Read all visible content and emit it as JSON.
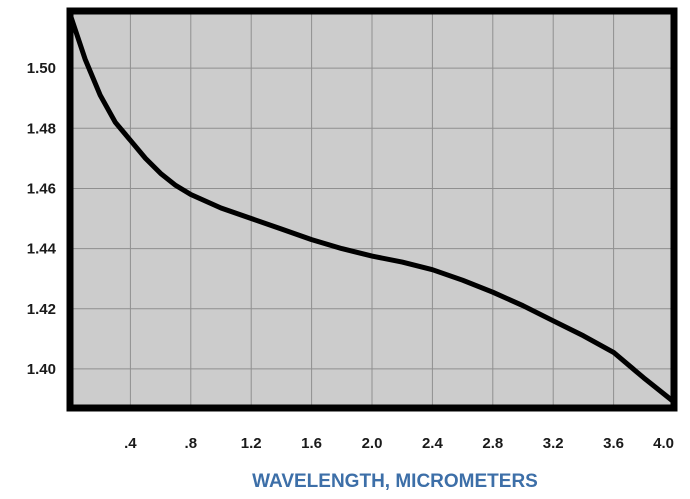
{
  "chart_data": {
    "type": "line",
    "title": "",
    "xlabel": "WAVELENGTH, MICROMETERS",
    "ylabel": "",
    "xlim": [
      0.0,
      4.0
    ],
    "ylim": [
      1.387,
      1.519
    ],
    "grid": true,
    "xticks": [
      {
        "value": 0.4,
        "label": ".4"
      },
      {
        "value": 0.8,
        "label": ".8"
      },
      {
        "value": 1.2,
        "label": "1.2"
      },
      {
        "value": 1.6,
        "label": "1.6"
      },
      {
        "value": 2.0,
        "label": "2.0"
      },
      {
        "value": 2.4,
        "label": "2.4"
      },
      {
        "value": 2.8,
        "label": "2.8"
      },
      {
        "value": 3.2,
        "label": "3.2"
      },
      {
        "value": 3.6,
        "label": "3.6"
      },
      {
        "value": 4.0,
        "label": "4.0"
      }
    ],
    "yticks": [
      {
        "value": 1.4,
        "label": "1.40"
      },
      {
        "value": 1.42,
        "label": "1.42"
      },
      {
        "value": 1.44,
        "label": "1.44"
      },
      {
        "value": 1.46,
        "label": "1.46"
      },
      {
        "value": 1.48,
        "label": "1.48"
      },
      {
        "value": 1.5,
        "label": "1.50"
      }
    ],
    "series": [
      {
        "x": [
          0.0,
          0.1,
          0.2,
          0.3,
          0.4,
          0.5,
          0.6,
          0.7,
          0.8,
          1.0,
          1.2,
          1.4,
          1.6,
          1.8,
          2.0,
          2.2,
          2.4,
          2.6,
          2.8,
          3.0,
          3.2,
          3.4,
          3.6,
          3.8,
          4.0
        ],
        "y": [
          1.518,
          1.503,
          1.491,
          1.482,
          1.476,
          1.47,
          1.465,
          1.461,
          1.458,
          1.4535,
          1.45,
          1.4465,
          1.443,
          1.44,
          1.4375,
          1.4355,
          1.433,
          1.4295,
          1.4255,
          1.421,
          1.416,
          1.411,
          1.4055,
          1.397,
          1.389
        ]
      }
    ],
    "colors": {
      "plot_background": "#cccccc",
      "grid": "#8f8f8f",
      "frame": "#000000",
      "line": "#000000",
      "xlabel": "#3d6fa8"
    }
  }
}
